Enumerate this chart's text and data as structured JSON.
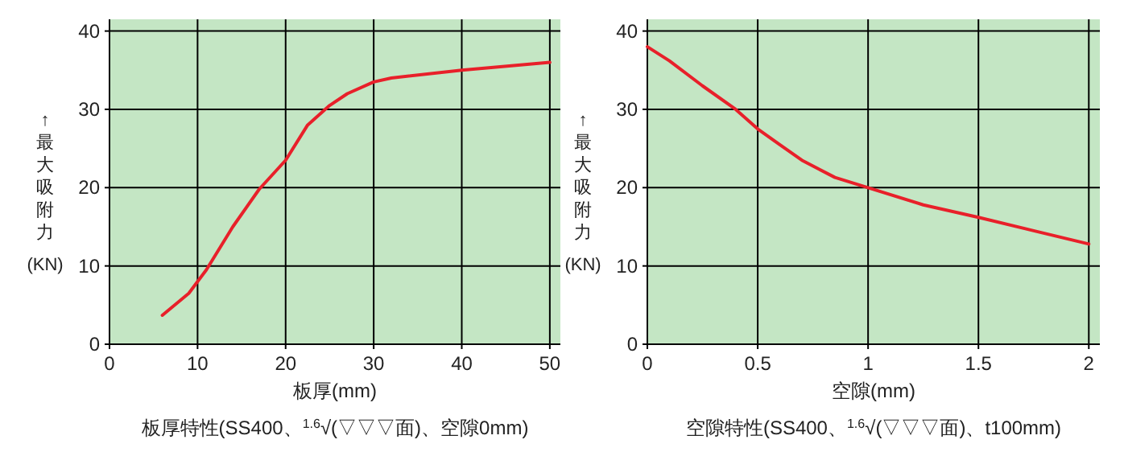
{
  "chart_data": [
    {
      "type": "line",
      "xlabel": "板厚(mm)",
      "ylabel": "↑最大吸附力(KN)",
      "annotations": [
        "板厚特性(SS400、$^{1.6}$√(▽▽▽面)、空隙0mm)"
      ],
      "grid": true,
      "xlim": [
        0,
        51.2
      ],
      "ylim": [
        0,
        41.5
      ],
      "xticks": [
        0,
        10,
        20,
        30,
        40,
        50
      ],
      "yticks": [
        0,
        10,
        20,
        30,
        40
      ],
      "series": [
        {
          "color": "#e8202a",
          "x": [
            6,
            9,
            11,
            14,
            17,
            20,
            22.5,
            25,
            27,
            30,
            32,
            40,
            50
          ],
          "values": [
            3.7,
            6.5,
            9.5,
            15,
            19.8,
            23.5,
            28,
            30.5,
            32,
            33.5,
            34,
            35,
            36
          ]
        }
      ]
    },
    {
      "type": "line",
      "xlabel": "空隙(mm)",
      "ylabel": "↑最大吸附力(KN)",
      "annotations": [
        "空隙特性(SS400、$^{1.6}$√(▽▽▽面)、t100mm)"
      ],
      "grid": true,
      "xlim": [
        0,
        2.05
      ],
      "ylim": [
        0,
        41.5
      ],
      "xticks": [
        0,
        {
          "value": 0.5,
          "label": "0.5"
        },
        1,
        {
          "value": 1.5,
          "label": "1.5"
        },
        2
      ],
      "yticks": [
        0,
        10,
        20,
        30,
        40
      ],
      "series": [
        {
          "color": "#e8202a",
          "x": [
            0,
            0.1,
            0.25,
            0.4,
            0.5,
            0.6,
            0.7,
            0.85,
            1,
            1.25,
            1.5,
            1.75,
            2
          ],
          "values": [
            38,
            36.2,
            33,
            30,
            27.5,
            25.5,
            23.5,
            21.3,
            20,
            17.8,
            16.2,
            14.5,
            12.8
          ]
        }
      ]
    }
  ]
}
